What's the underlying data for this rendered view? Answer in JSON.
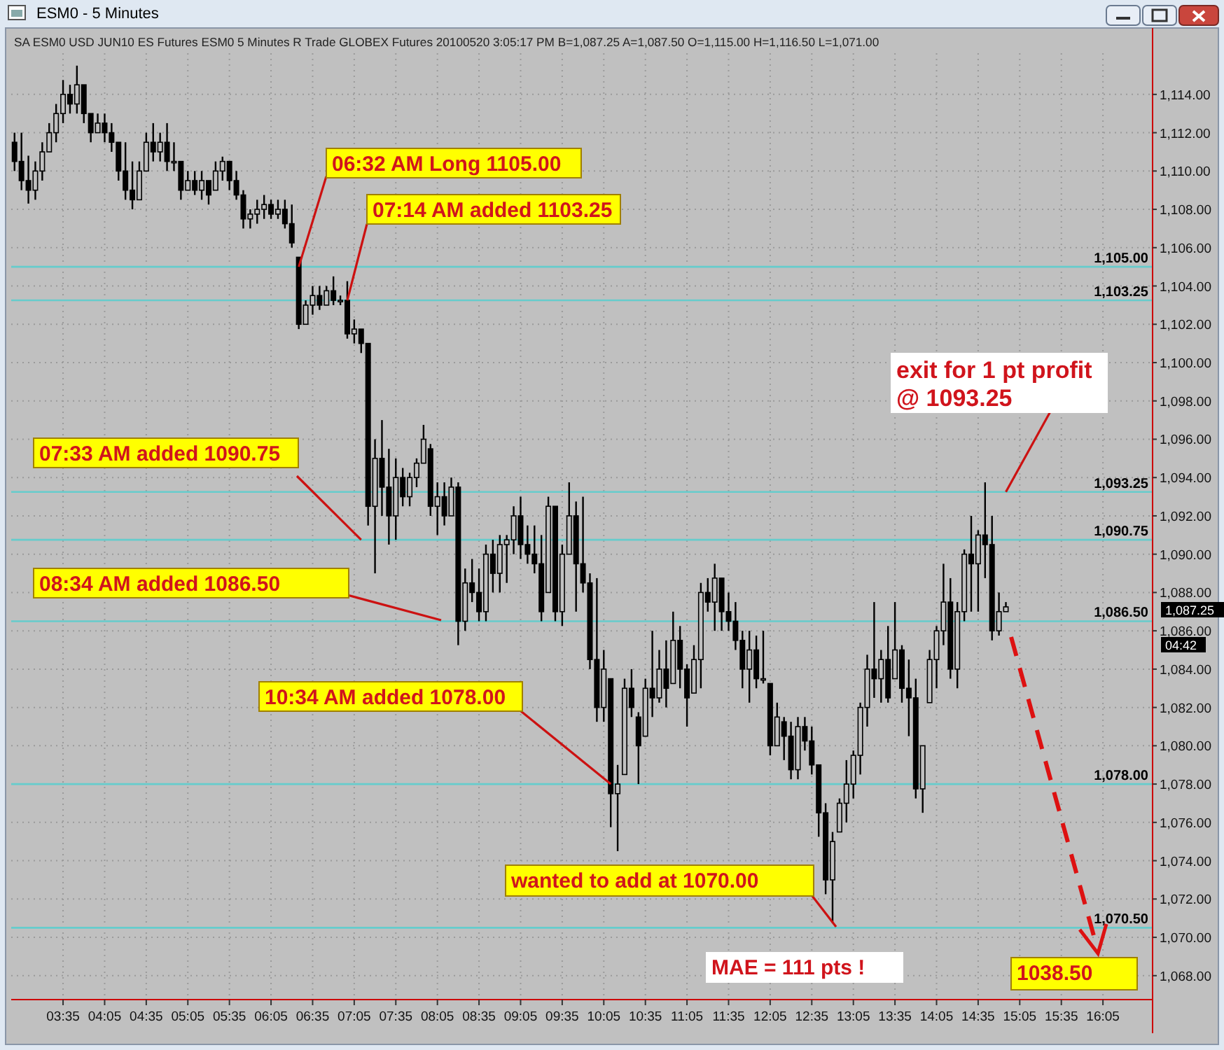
{
  "chart_data": {
    "type": "candlestick",
    "title": "ESM0 - 5 Minutes",
    "subtitle": "SA  ESM0  USD JUN10 ES Futures ESM0  5 Minutes  R  Trade  GLOBEX  Futures  20100520  3:05:17 PM  B=1,087.25  A=1,087.50  O=1,115.00  H=1,116.50  L=1,071.00",
    "color": "#000000",
    "grid": true,
    "xlim": [
      2.96,
      16.68
    ],
    "ylim": [
      1066.75,
      1116.15
    ],
    "xticks": [
      {
        "value": 3.5833,
        "label": "03:35"
      },
      {
        "value": 4.0833,
        "label": "04:05"
      },
      {
        "value": 4.5833,
        "label": "04:35"
      },
      {
        "value": 5.0833,
        "label": "05:05"
      },
      {
        "value": 5.5833,
        "label": "05:35"
      },
      {
        "value": 6.0833,
        "label": "06:05"
      },
      {
        "value": 6.5833,
        "label": "06:35"
      },
      {
        "value": 7.0833,
        "label": "07:05"
      },
      {
        "value": 7.5833,
        "label": "07:35"
      },
      {
        "value": 8.0833,
        "label": "08:05"
      },
      {
        "value": 8.5833,
        "label": "08:35"
      },
      {
        "value": 9.0833,
        "label": "09:05"
      },
      {
        "value": 9.5833,
        "label": "09:35"
      },
      {
        "value": 10.0833,
        "label": "10:05"
      },
      {
        "value": 10.5833,
        "label": "10:35"
      },
      {
        "value": 11.0833,
        "label": "11:05"
      },
      {
        "value": 11.5833,
        "label": "11:35"
      },
      {
        "value": 12.0833,
        "label": "12:05"
      },
      {
        "value": 12.5833,
        "label": "12:35"
      },
      {
        "value": 13.0833,
        "label": "13:05"
      },
      {
        "value": 13.5833,
        "label": "13:35"
      },
      {
        "value": 14.0833,
        "label": "14:05"
      },
      {
        "value": 14.5833,
        "label": "14:35"
      },
      {
        "value": 15.0833,
        "label": "15:05"
      },
      {
        "value": 15.5833,
        "label": "15:35"
      },
      {
        "value": 16.0833,
        "label": "16:05"
      }
    ],
    "yticks": [
      {
        "value": 1068,
        "label": "1,068.00"
      },
      {
        "value": 1070,
        "label": "1,070.00"
      },
      {
        "value": 1072,
        "label": "1,072.00"
      },
      {
        "value": 1074,
        "label": "1,074.00"
      },
      {
        "value": 1076,
        "label": "1,076.00"
      },
      {
        "value": 1078,
        "label": "1,078.00"
      },
      {
        "value": 1080,
        "label": "1,080.00"
      },
      {
        "value": 1082,
        "label": "1,082.00"
      },
      {
        "value": 1084,
        "label": "1,084.00"
      },
      {
        "value": 1086,
        "label": "1,086.00"
      },
      {
        "value": 1088,
        "label": "1,088.00"
      },
      {
        "value": 1090,
        "label": "1,090.00"
      },
      {
        "value": 1092,
        "label": "1,092.00"
      },
      {
        "value": 1094,
        "label": "1,094.00"
      },
      {
        "value": 1096,
        "label": "1,096.00"
      },
      {
        "value": 1098,
        "label": "1,098.00"
      },
      {
        "value": 1100,
        "label": "1,100.00"
      },
      {
        "value": 1102,
        "label": "1,102.00"
      },
      {
        "value": 1104,
        "label": "1,104.00"
      },
      {
        "value": 1106,
        "label": "1,106.00"
      },
      {
        "value": 1108,
        "label": "1,108.00"
      },
      {
        "value": 1110,
        "label": "1,110.00"
      },
      {
        "value": 1112,
        "label": "1,112.00"
      },
      {
        "value": 1114,
        "label": "1,114.00"
      }
    ],
    "x": [
      3,
      3.0833,
      3.1667,
      3.25,
      3.3333,
      3.4167,
      3.5,
      3.5833,
      3.6667,
      3.75,
      3.8333,
      3.9167,
      4,
      4.0833,
      4.1667,
      4.25,
      4.3333,
      4.4167,
      4.5,
      4.5833,
      4.6667,
      4.75,
      4.8333,
      4.9167,
      5,
      5.0833,
      5.1667,
      5.25,
      5.3333,
      5.4167,
      5.5,
      5.5833,
      5.6667,
      5.75,
      5.8333,
      5.9167,
      6,
      6.0833,
      6.1667,
      6.25,
      6.3333,
      6.4167,
      6.5,
      6.5833,
      6.6667,
      6.75,
      6.8333,
      6.9167,
      7,
      7.0833,
      7.1667,
      7.25,
      7.3333,
      7.4167,
      7.5,
      7.5833,
      7.6667,
      7.75,
      7.8333,
      7.9167,
      8,
      8.0833,
      8.1667,
      8.25,
      8.3333,
      8.4167,
      8.5,
      8.5833,
      8.6667,
      8.75,
      8.8333,
      8.9167,
      9,
      9.0833,
      9.1667,
      9.25,
      9.3333,
      9.4167,
      9.5,
      9.5833,
      9.6667,
      9.75,
      9.8333,
      9.9167,
      10,
      10.0833,
      10.1667,
      10.25,
      10.3333,
      10.4167,
      10.5,
      10.5833,
      10.6667,
      10.75,
      10.8333,
      10.9167,
      11,
      11.0833,
      11.1667,
      11.25,
      11.3333,
      11.4167,
      11.5,
      11.5833,
      11.6667,
      11.75,
      11.8333,
      11.9167,
      12,
      12.0833,
      12.1667,
      12.25,
      12.3333,
      12.4167,
      12.5,
      12.5833,
      12.6667,
      12.75,
      12.8333,
      12.9167,
      13,
      13.0833,
      13.1667,
      13.25,
      13.3333,
      13.4167,
      13.5,
      13.5833,
      13.6667,
      13.75,
      13.8333,
      13.9167,
      14,
      14.0833,
      14.1667,
      14.25,
      14.3333,
      14.4167,
      14.5,
      14.5833,
      14.6667,
      14.75,
      14.8333,
      14.9167
    ],
    "ohlc": [
      [
        1111.5,
        1112,
        1110,
        1110.5
      ],
      [
        1110.5,
        1112,
        1109,
        1109.5
      ],
      [
        1109.5,
        1110.8,
        1108.3,
        1109
      ],
      [
        1109,
        1110.5,
        1108.5,
        1110
      ],
      [
        1110,
        1111.5,
        1109.5,
        1111
      ],
      [
        1111,
        1112.5,
        1111,
        1112
      ],
      [
        1112,
        1113.5,
        1111.5,
        1113
      ],
      [
        1113,
        1114.75,
        1112.5,
        1114
      ],
      [
        1114,
        1114.5,
        1113,
        1113.5
      ],
      [
        1113.5,
        1115.5,
        1113,
        1114.5
      ],
      [
        1114.5,
        1114.5,
        1112.5,
        1113
      ],
      [
        1113,
        1113,
        1111.5,
        1112
      ],
      [
        1112,
        1113,
        1112,
        1112.5
      ],
      [
        1112.5,
        1113,
        1111.5,
        1112
      ],
      [
        1112,
        1112.5,
        1111,
        1111.5
      ],
      [
        1111.5,
        1111.5,
        1109.5,
        1110
      ],
      [
        1110,
        1111.5,
        1108.5,
        1109
      ],
      [
        1109,
        1110.5,
        1108,
        1108.5
      ],
      [
        1108.5,
        1110.5,
        1108.5,
        1110
      ],
      [
        1110,
        1112,
        1110,
        1111.5
      ],
      [
        1111.5,
        1112.5,
        1110.5,
        1111
      ],
      [
        1111,
        1112,
        1110.5,
        1111.5
      ],
      [
        1111.5,
        1112.5,
        1110,
        1110.5
      ],
      [
        1110.5,
        1111.5,
        1110,
        1110.5
      ],
      [
        1110.5,
        1110.5,
        1108.5,
        1109
      ],
      [
        1109,
        1110,
        1109,
        1109.5
      ],
      [
        1109.5,
        1110,
        1108.75,
        1109
      ],
      [
        1109,
        1110,
        1108.5,
        1109.5
      ],
      [
        1109.5,
        1109.5,
        1108.25,
        1108.75
      ],
      [
        1109,
        1110.5,
        1109,
        1110
      ],
      [
        1110,
        1110.75,
        1109.5,
        1110.5
      ],
      [
        1110.5,
        1110.5,
        1109,
        1109.5
      ],
      [
        1109.5,
        1110,
        1108.5,
        1108.75
      ],
      [
        1108.75,
        1109,
        1107,
        1107.5
      ],
      [
        1107.5,
        1108,
        1107,
        1107.75
      ],
      [
        1107.75,
        1108.5,
        1107.25,
        1108
      ],
      [
        1108,
        1108.75,
        1107.5,
        1108.25
      ],
      [
        1108.25,
        1108.5,
        1107.5,
        1107.75
      ],
      [
        1107.75,
        1108.5,
        1107.5,
        1108
      ],
      [
        1108,
        1108.5,
        1107,
        1107.25
      ],
      [
        1107.25,
        1108.25,
        1106,
        1106.25
      ],
      [
        1105.5,
        1105.5,
        1101.75,
        1102
      ],
      [
        1102,
        1103.25,
        1102,
        1103
      ],
      [
        1103,
        1104,
        1102.5,
        1103.5
      ],
      [
        1103.5,
        1104,
        1102.75,
        1103
      ],
      [
        1103,
        1104,
        1103,
        1103.75
      ],
      [
        1103.75,
        1104.5,
        1103,
        1103.25
      ],
      [
        1103.25,
        1103.5,
        1103,
        1103.25
      ],
      [
        1103.25,
        1104.25,
        1101.25,
        1101.5
      ],
      [
        1101.5,
        1102.25,
        1101,
        1101.75
      ],
      [
        1101.75,
        1101.75,
        1100.5,
        1101
      ],
      [
        1101,
        1101,
        1091.5,
        1092.5
      ],
      [
        1092.5,
        1096,
        1089,
        1095
      ],
      [
        1095,
        1097,
        1092,
        1093.5
      ],
      [
        1093.5,
        1095.5,
        1090.5,
        1092
      ],
      [
        1092,
        1095,
        1090.75,
        1094
      ],
      [
        1094,
        1094.5,
        1092.5,
        1093
      ],
      [
        1093,
        1094.25,
        1092.5,
        1094
      ],
      [
        1094,
        1095,
        1093.5,
        1094.75
      ],
      [
        1094.75,
        1096.75,
        1094.75,
        1096
      ],
      [
        1095.5,
        1095.75,
        1092,
        1092.5
      ],
      [
        1092.5,
        1093.75,
        1091,
        1093
      ],
      [
        1093,
        1093.75,
        1091.5,
        1092
      ],
      [
        1092,
        1094,
        1092,
        1093.5
      ],
      [
        1093.5,
        1093.75,
        1085.25,
        1086.5
      ],
      [
        1086.5,
        1089.25,
        1086,
        1088.5
      ],
      [
        1088.5,
        1089.75,
        1087.5,
        1088
      ],
      [
        1088,
        1089.25,
        1086.5,
        1087
      ],
      [
        1087,
        1090.5,
        1086.5,
        1090
      ],
      [
        1090,
        1090.75,
        1088,
        1089
      ],
      [
        1089,
        1091,
        1088,
        1090.5
      ],
      [
        1090.5,
        1091,
        1088.5,
        1090.75
      ],
      [
        1090.75,
        1092.5,
        1090,
        1092
      ],
      [
        1092,
        1093,
        1089.75,
        1090.5
      ],
      [
        1090.5,
        1091.5,
        1089.5,
        1090
      ],
      [
        1090,
        1091.5,
        1089,
        1089.5
      ],
      [
        1089.5,
        1091,
        1086.5,
        1087
      ],
      [
        1088,
        1093,
        1088,
        1092.5
      ],
      [
        1092.5,
        1092.5,
        1086.5,
        1087
      ],
      [
        1087,
        1090.5,
        1086.25,
        1090
      ],
      [
        1090,
        1093.75,
        1090,
        1092
      ],
      [
        1092,
        1092.75,
        1087,
        1089.5
      ],
      [
        1089.5,
        1093,
        1088,
        1088.5
      ],
      [
        1088.5,
        1089,
        1084,
        1084.5
      ],
      [
        1084.5,
        1088.75,
        1081.25,
        1082
      ],
      [
        1082,
        1085,
        1081.25,
        1084
      ],
      [
        1083.5,
        1083.5,
        1075.75,
        1077.5
      ],
      [
        1077.5,
        1079,
        1074.5,
        1078
      ],
      [
        1078.5,
        1083.5,
        1078.5,
        1083
      ],
      [
        1083,
        1084,
        1081.5,
        1082
      ],
      [
        1081.5,
        1081.75,
        1078,
        1080
      ],
      [
        1080.5,
        1083.5,
        1080.5,
        1083
      ],
      [
        1083,
        1086,
        1081.5,
        1082.5
      ],
      [
        1082.5,
        1085,
        1082.25,
        1084
      ],
      [
        1084,
        1085.5,
        1082,
        1083
      ],
      [
        1083.25,
        1087,
        1083.25,
        1085.5
      ],
      [
        1085.5,
        1086.25,
        1083,
        1084
      ],
      [
        1084,
        1084.25,
        1081,
        1082.5
      ],
      [
        1082.75,
        1085.25,
        1082.75,
        1084.5
      ],
      [
        1084.5,
        1088.5,
        1083,
        1088
      ],
      [
        1088,
        1088.75,
        1087,
        1087.5
      ],
      [
        1087.5,
        1089.5,
        1086,
        1088.75
      ],
      [
        1088.75,
        1088.75,
        1086,
        1087
      ],
      [
        1087,
        1088,
        1086,
        1086.5
      ],
      [
        1086.5,
        1087.5,
        1085,
        1085.5
      ],
      [
        1085.5,
        1086,
        1083,
        1084
      ],
      [
        1084,
        1086,
        1082.25,
        1085
      ],
      [
        1085,
        1085.75,
        1083,
        1083.5
      ],
      [
        1083.5,
        1086,
        1083.25,
        1083.5
      ],
      [
        1083.25,
        1083.25,
        1079.5,
        1080
      ],
      [
        1080,
        1082.25,
        1080,
        1081.5
      ],
      [
        1081.25,
        1081.5,
        1079.25,
        1080.5
      ],
      [
        1080.5,
        1081.25,
        1078.25,
        1078.75
      ],
      [
        1078.75,
        1081.5,
        1078.25,
        1081
      ],
      [
        1081,
        1081.5,
        1079.75,
        1080.25
      ],
      [
        1080.25,
        1081,
        1078.5,
        1079
      ],
      [
        1079,
        1079,
        1075.25,
        1076.5
      ],
      [
        1076.5,
        1077,
        1072.25,
        1073
      ],
      [
        1073,
        1075.5,
        1070.75,
        1075
      ],
      [
        1075.5,
        1077.25,
        1075.5,
        1077
      ],
      [
        1077,
        1079.25,
        1076,
        1078
      ],
      [
        1078,
        1079.75,
        1077.25,
        1079.5
      ],
      [
        1079.5,
        1082.25,
        1078.5,
        1082
      ],
      [
        1082,
        1084.75,
        1081,
        1084
      ],
      [
        1084,
        1087.5,
        1082.5,
        1083.5
      ],
      [
        1083.5,
        1085,
        1082.25,
        1084.5
      ],
      [
        1084.5,
        1086.25,
        1082.25,
        1082.5
      ],
      [
        1083.5,
        1087.5,
        1083.5,
        1085
      ],
      [
        1085,
        1085.25,
        1082.25,
        1083
      ],
      [
        1083,
        1084.5,
        1080.5,
        1082.5
      ],
      [
        1082.5,
        1083.5,
        1077.25,
        1077.75
      ],
      [
        1077.75,
        1080,
        1076.5,
        1080
      ],
      [
        1082.25,
        1085,
        1082.25,
        1084.5
      ],
      [
        1084.5,
        1086.25,
        1083,
        1086
      ],
      [
        1086,
        1089.5,
        1085.25,
        1087.5
      ],
      [
        1087.5,
        1088.75,
        1083.5,
        1084
      ],
      [
        1084,
        1087.5,
        1083,
        1087
      ],
      [
        1087,
        1090.25,
        1086.5,
        1090
      ],
      [
        1090,
        1092,
        1087,
        1089.5
      ],
      [
        1089.5,
        1091.25,
        1087,
        1091
      ],
      [
        1091,
        1093.75,
        1088.75,
        1090.5
      ],
      [
        1090.5,
        1092,
        1085.5,
        1086
      ],
      [
        1086,
        1088,
        1085.75,
        1087
      ],
      [
        1087,
        1087.5,
        1087,
        1087.25
      ]
    ],
    "ref_lines": [
      {
        "axis": "y",
        "value": 1105,
        "label": "1,105.00",
        "color": "#66cccc"
      },
      {
        "axis": "y",
        "value": 1103.25,
        "label": "1,103.25",
        "color": "#66cccc"
      },
      {
        "axis": "y",
        "value": 1093.25,
        "label": "1,093.25",
        "color": "#66cccc"
      },
      {
        "axis": "y",
        "value": 1090.75,
        "label": "1,090.75",
        "color": "#66cccc"
      },
      {
        "axis": "y",
        "value": 1086.5,
        "label": "1,086.50",
        "color": "#66cccc"
      },
      {
        "axis": "y",
        "value": 1078,
        "label": "1,078.00",
        "color": "#66cccc"
      },
      {
        "axis": "y",
        "value": 1070.5,
        "label": "1,070.50",
        "color": "#66cccc"
      }
    ],
    "annotations": [
      {
        "text": "06:32 AM Long 1105.00",
        "x": 6.4167,
        "y": 1105
      },
      {
        "text": "07:14 AM added 1103.25",
        "x": 7,
        "y": 1103.25
      },
      {
        "text": "07:33 AM added 1090.75",
        "x": 7.1667,
        "y": 1090.75
      },
      "08:34 AM added 1086.50",
      {
        "text": "10:34 AM added 1078.00",
        "x": 10.1667,
        "y": 1078
      },
      "wanted to add at 1070.00",
      {
        "text": "exit for 1 pt profit\n@ 1093.25",
        "x": 14.9167,
        "y": 1093.25
      },
      "MAE = 111 pts !",
      "1038.50",
      "1,087.25",
      "04:42"
    ]
  }
}
